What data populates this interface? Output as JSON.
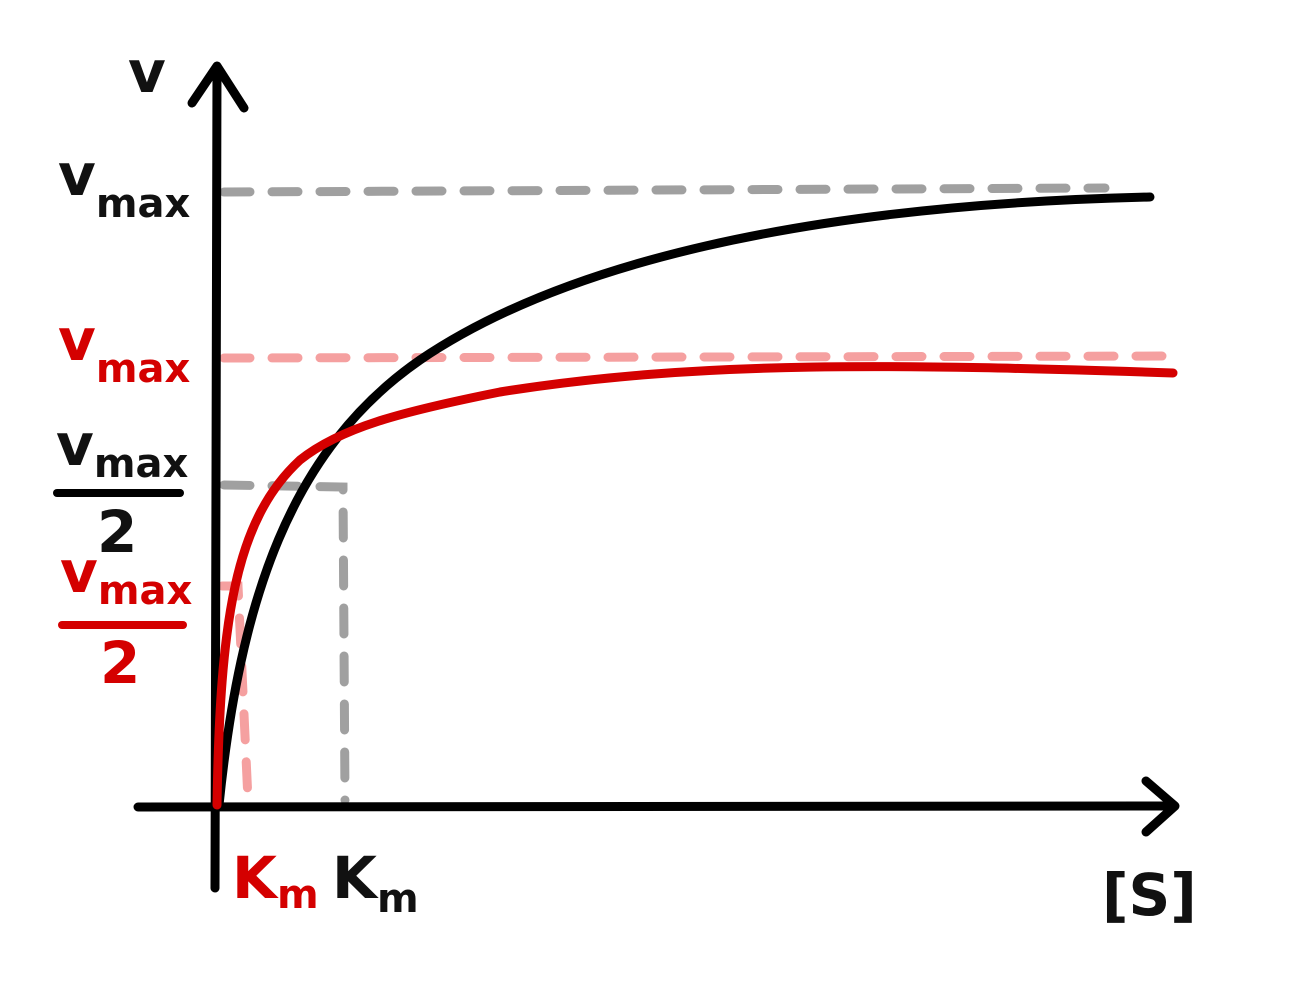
{
  "y_axis": {
    "label": "v"
  },
  "x_axis": {
    "label": "[S]"
  },
  "labels": {
    "vmax_black": {
      "main": "v",
      "sub": "max"
    },
    "vmax_red": {
      "main": "v",
      "sub": "max"
    },
    "half_black": {
      "main": "v",
      "sub": "max",
      "denominator": "2"
    },
    "half_red": {
      "main": "v",
      "sub": "max",
      "denominator": "2"
    },
    "km_red": {
      "main": "K",
      "sub": "m"
    },
    "km_black": {
      "main": "K",
      "sub": "m"
    }
  }
}
